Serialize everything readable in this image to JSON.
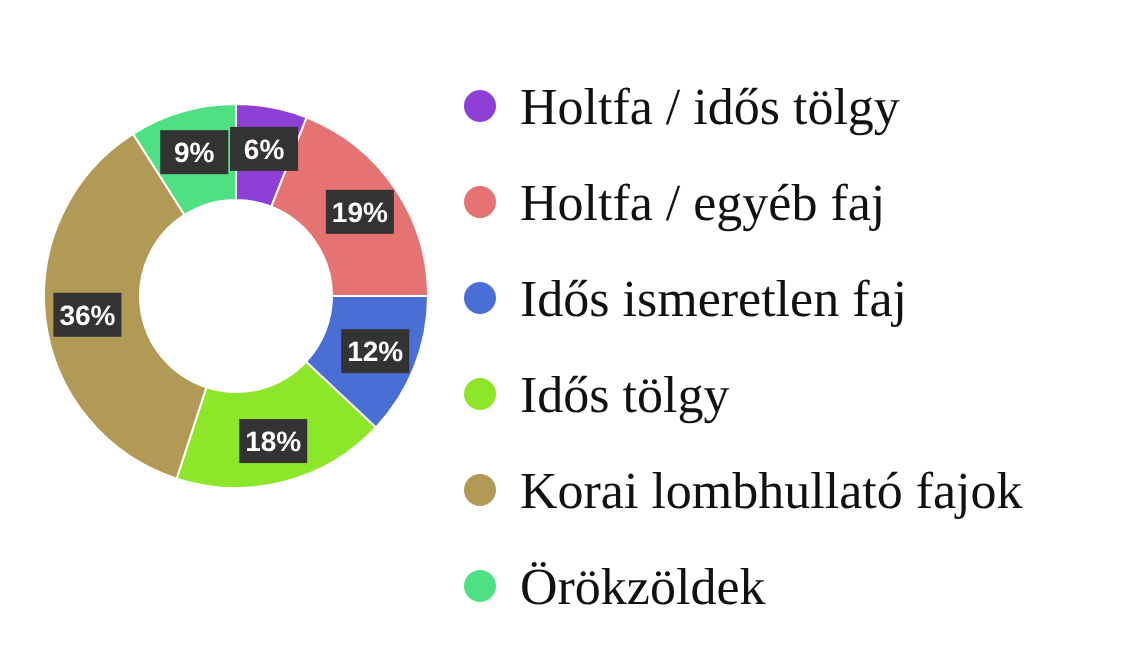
{
  "chart_data": {
    "type": "donut",
    "categories": [
      "Holtfa / idős tölgy",
      "Holtfa / egyéb faj",
      "Idős ismeretlen faj",
      "Idős tölgy",
      "Korai lombhullató fajok",
      "Örökzöldek"
    ],
    "values": [
      6,
      19,
      12,
      18,
      36,
      9
    ],
    "colors": [
      "#8e3fd6",
      "#e57373",
      "#4a6fd4",
      "#8ee62a",
      "#b09a55",
      "#4ee083"
    ],
    "value_labels": [
      "6%",
      "19%",
      "12%",
      "18%",
      "36%",
      "9%"
    ],
    "legend": "right"
  }
}
